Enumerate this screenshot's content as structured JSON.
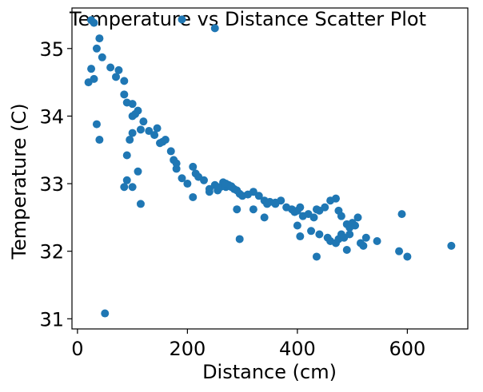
{
  "chart_data": {
    "type": "scatter",
    "title": "Temperature vs Distance Scatter Plot",
    "xlabel": "Distance (cm)",
    "ylabel": "Temperature (C)",
    "xlim": [
      -10,
      710
    ],
    "ylim": [
      30.85,
      35.6
    ],
    "xticks": [
      0,
      200,
      400,
      600
    ],
    "xtick_labels": [
      "0",
      "200",
      "400",
      "600"
    ],
    "yticks": [
      31,
      32,
      33,
      34,
      35
    ],
    "ytick_labels": [
      "31",
      "32",
      "33",
      "34",
      "35"
    ],
    "grid": false,
    "legend": "none",
    "colors": {
      "marker": "#1f77b4",
      "axes": "#000000",
      "background": "#ffffff"
    },
    "series": [
      {
        "x": [
          25,
          30,
          190,
          250,
          20,
          25,
          30,
          35,
          40,
          45,
          60,
          70,
          75,
          85,
          85,
          90,
          100,
          110,
          105,
          115,
          120,
          130,
          140,
          150,
          145,
          155,
          160,
          170,
          175,
          180,
          180,
          200,
          210,
          215,
          220,
          230,
          240,
          250,
          255,
          260,
          265,
          270,
          275,
          280,
          285,
          290,
          295,
          300,
          310,
          320,
          330,
          340,
          345,
          350,
          360,
          370,
          380,
          390,
          395,
          400,
          405,
          410,
          420,
          430,
          440,
          450,
          460,
          470,
          475,
          480,
          490,
          495,
          500,
          505,
          510,
          35,
          40,
          90,
          95,
          100,
          85,
          90,
          100,
          110,
          115,
          100,
          190,
          210,
          240,
          255,
          270,
          280,
          290,
          295,
          320,
          340,
          360,
          400,
          405,
          425,
          435,
          435,
          440,
          455,
          460,
          470,
          475,
          480,
          485,
          490,
          495,
          515,
          525,
          590,
          520,
          545,
          585,
          600,
          680,
          50
        ],
        "y": [
          35.42,
          35.38,
          35.43,
          35.3,
          34.5,
          34.7,
          34.55,
          35.0,
          35.15,
          34.87,
          34.72,
          34.58,
          34.68,
          34.52,
          34.32,
          34.2,
          34.18,
          34.08,
          34.03,
          33.8,
          33.92,
          33.78,
          33.72,
          33.6,
          33.82,
          33.62,
          33.65,
          33.48,
          33.35,
          33.22,
          33.3,
          33.0,
          33.25,
          33.15,
          33.1,
          33.05,
          32.92,
          32.98,
          32.9,
          32.95,
          33.02,
          32.95,
          32.98,
          32.96,
          32.92,
          32.9,
          32.85,
          32.82,
          32.84,
          32.88,
          32.82,
          32.75,
          32.7,
          32.73,
          32.72,
          32.75,
          32.65,
          32.62,
          32.58,
          32.6,
          32.65,
          32.52,
          32.55,
          32.5,
          32.6,
          32.65,
          32.75,
          32.78,
          32.6,
          32.52,
          32.4,
          32.35,
          32.42,
          32.38,
          32.5,
          33.88,
          33.65,
          33.42,
          33.65,
          33.75,
          32.95,
          33.05,
          32.95,
          33.18,
          32.7,
          34.0,
          33.08,
          32.8,
          32.88,
          32.95,
          33.0,
          32.95,
          32.62,
          32.18,
          32.62,
          32.5,
          32.7,
          32.38,
          32.22,
          32.3,
          32.62,
          31.92,
          32.25,
          32.2,
          32.15,
          32.12,
          32.18,
          32.25,
          32.2,
          32.02,
          32.25,
          32.12,
          32.2,
          32.55,
          32.08,
          32.15,
          32.0,
          31.92,
          32.08,
          31.08
        ]
      }
    ]
  }
}
